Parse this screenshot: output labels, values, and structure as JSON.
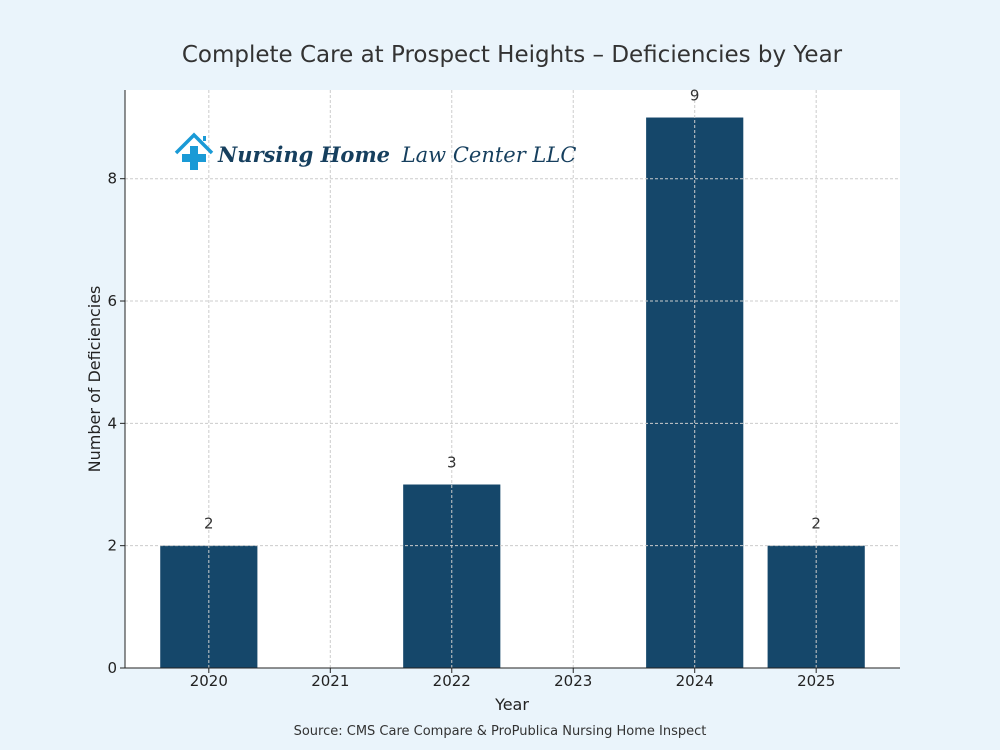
{
  "chart_data": {
    "type": "bar",
    "title": "Complete Care at Prospect Heights – Deficiencies by Year",
    "xlabel": "Year",
    "ylabel": "Number of Deficiencies",
    "categories": [
      "2020",
      "2021",
      "2022",
      "2023",
      "2024",
      "2025"
    ],
    "values": [
      2,
      0,
      3,
      0,
      9,
      2
    ],
    "data_labels": [
      "2",
      "",
      "3",
      "",
      "9",
      "2"
    ],
    "yticks": [
      0,
      2,
      4,
      6,
      8
    ],
    "ylim": [
      0,
      9.45
    ],
    "grid": true,
    "bar_color": "#15476a",
    "background_color": "#eaf4fb",
    "source": "Source: CMS Care Compare & ProPublica Nursing Home Inspect"
  },
  "logo": {
    "text_bold": "Nursing Home",
    "text_regular": "Law Center LLC",
    "icon": "house-cross-icon",
    "icon_color": "#1a9ad6",
    "text_color": "#163f5e"
  }
}
